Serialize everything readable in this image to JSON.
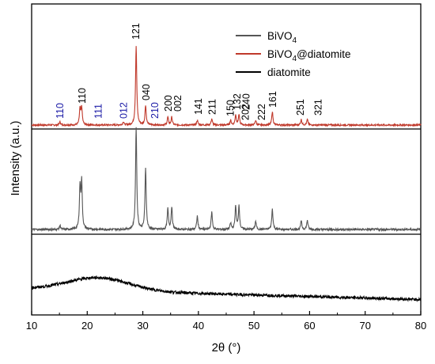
{
  "chart_data": {
    "type": "line",
    "xlabel": "2θ (°)",
    "ylabel": "Intensity (a.u.)",
    "xlim": [
      10,
      80
    ],
    "xticks": [
      "10",
      "20",
      "30",
      "40",
      "50",
      "60",
      "70",
      "80"
    ],
    "stacked_panels": 3,
    "grid": false,
    "legend_position": "top-right",
    "legend": [
      {
        "label": "BiVO",
        "sub": "4",
        "suffix": "",
        "color": "#555555"
      },
      {
        "label": "BiVO",
        "sub": "4",
        "suffix": "@diatomite",
        "color": "#c0392b"
      },
      {
        "label": "diatomite",
        "sub": "",
        "suffix": "",
        "color": "#000000"
      }
    ],
    "series": [
      {
        "name": "BiVO4@diatomite",
        "panel": 0,
        "color": "#c0392b",
        "peaks": [
          {
            "x": 15.1,
            "h": 0.04
          },
          {
            "x": 18.7,
            "h": 0.2
          },
          {
            "x": 19.0,
            "h": 0.22
          },
          {
            "x": 26.5,
            "h": 0.04
          },
          {
            "x": 28.8,
            "h": 1.0
          },
          {
            "x": 30.5,
            "h": 0.25
          },
          {
            "x": 34.5,
            "h": 0.1
          },
          {
            "x": 35.2,
            "h": 0.1
          },
          {
            "x": 39.8,
            "h": 0.06
          },
          {
            "x": 42.4,
            "h": 0.08
          },
          {
            "x": 45.8,
            "h": 0.06
          },
          {
            "x": 46.7,
            "h": 0.13
          },
          {
            "x": 47.3,
            "h": 0.13
          },
          {
            "x": 50.3,
            "h": 0.06
          },
          {
            "x": 53.3,
            "h": 0.17
          },
          {
            "x": 58.5,
            "h": 0.07
          },
          {
            "x": 59.6,
            "h": 0.07
          }
        ]
      },
      {
        "name": "BiVO4",
        "panel": 1,
        "color": "#555555",
        "peaks": [
          {
            "x": 15.1,
            "h": 0.04
          },
          {
            "x": 18.7,
            "h": 0.4
          },
          {
            "x": 19.0,
            "h": 0.45
          },
          {
            "x": 28.8,
            "h": 1.0
          },
          {
            "x": 30.5,
            "h": 0.6
          },
          {
            "x": 34.5,
            "h": 0.2
          },
          {
            "x": 35.2,
            "h": 0.22
          },
          {
            "x": 39.8,
            "h": 0.13
          },
          {
            "x": 42.4,
            "h": 0.17
          },
          {
            "x": 45.8,
            "h": 0.06
          },
          {
            "x": 46.7,
            "h": 0.23
          },
          {
            "x": 47.3,
            "h": 0.23
          },
          {
            "x": 50.3,
            "h": 0.08
          },
          {
            "x": 53.3,
            "h": 0.2
          },
          {
            "x": 58.5,
            "h": 0.08
          },
          {
            "x": 59.6,
            "h": 0.09
          }
        ]
      },
      {
        "name": "diatomite",
        "panel": 2,
        "color": "#000000",
        "broad_hump": {
          "center": 22,
          "height": 0.55
        },
        "baseline": [
          {
            "x": 10,
            "y": 0.5
          },
          {
            "x": 80,
            "y": 0.05
          }
        ]
      }
    ],
    "annotations": [
      {
        "text": "110",
        "x": 15.1,
        "y": 0.05,
        "color": "#1a1aa6"
      },
      {
        "text": "110",
        "x": 19.1,
        "y": 0.24,
        "color": "#000000"
      },
      {
        "text": "111",
        "x": 22.0,
        "y": 0.05,
        "color": "#1a1aa6"
      },
      {
        "text": "012",
        "x": 26.6,
        "y": 0.05,
        "color": "#1a1aa6"
      },
      {
        "text": "121",
        "x": 28.8,
        "y": 1.05,
        "color": "#000000"
      },
      {
        "text": "040",
        "x": 30.6,
        "y": 0.28,
        "color": "#000000"
      },
      {
        "text": "210",
        "x": 32.2,
        "y": 0.05,
        "color": "#1a1aa6"
      },
      {
        "text": "200",
        "x": 34.6,
        "y": 0.14,
        "color": "#000000"
      },
      {
        "text": "002",
        "x": 36.3,
        "y": 0.14,
        "color": "#000000"
      },
      {
        "text": "141",
        "x": 40.0,
        "y": 0.1,
        "color": "#000000"
      },
      {
        "text": "211",
        "x": 42.5,
        "y": 0.1,
        "color": "#000000"
      },
      {
        "text": "150",
        "x": 45.8,
        "y": 0.08,
        "color": "#000000"
      },
      {
        "text": "132",
        "x": 47.0,
        "y": 0.16,
        "color": "#000000"
      },
      {
        "text": "240",
        "x": 48.6,
        "y": 0.16,
        "color": "#000000"
      },
      {
        "text": "202",
        "x": 48.5,
        "y": 0.03,
        "color": "#000000"
      },
      {
        "text": "222",
        "x": 51.4,
        "y": 0.03,
        "color": "#000000"
      },
      {
        "text": "161",
        "x": 53.4,
        "y": 0.19,
        "color": "#000000"
      },
      {
        "text": "251",
        "x": 58.4,
        "y": 0.09,
        "color": "#000000"
      },
      {
        "text": "321",
        "x": 61.6,
        "y": 0.09,
        "color": "#000000"
      }
    ]
  }
}
